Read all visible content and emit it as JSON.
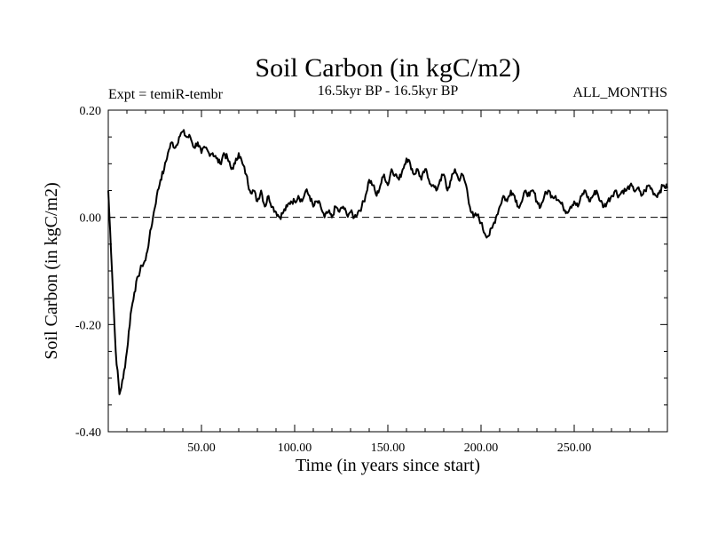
{
  "chart_data": {
    "type": "line",
    "title": "Soil Carbon (in kgC/m2)",
    "subtitle_left": "Expt = temiR-tembr",
    "subtitle_center": "16.5kyr BP - 16.5kyr BP",
    "subtitle_right": "ALL_MONTHS",
    "xlabel": "Time (in years since start)",
    "ylabel": "Soil Carbon (in kgC/m2)",
    "xlim": [
      0,
      300
    ],
    "ylim": [
      -0.4,
      0.2
    ],
    "x_ticks": [
      50,
      100,
      150,
      200,
      250
    ],
    "x_tick_labels": [
      "50.00",
      "100.00",
      "150.00",
      "200.00",
      "250.00"
    ],
    "y_ticks": [
      -0.4,
      -0.2,
      0.0,
      0.2
    ],
    "y_tick_labels": [
      "-0.40",
      "-0.20",
      "0.00",
      "0.20"
    ],
    "reference_line": 0.0,
    "series": [
      {
        "name": "Soil Carbon",
        "x": [
          0,
          2,
          4,
          6,
          8,
          10,
          12,
          14,
          16,
          18,
          20,
          22,
          24,
          26,
          28,
          30,
          32,
          34,
          36,
          38,
          40,
          42,
          44,
          46,
          48,
          50,
          52,
          54,
          56,
          58,
          60,
          62,
          64,
          66,
          68,
          70,
          72,
          74,
          76,
          78,
          80,
          82,
          84,
          86,
          88,
          90,
          92,
          94,
          96,
          98,
          100,
          102,
          104,
          106,
          108,
          110,
          112,
          114,
          116,
          118,
          120,
          122,
          124,
          126,
          128,
          130,
          132,
          134,
          136,
          138,
          140,
          142,
          144,
          146,
          148,
          150,
          152,
          154,
          156,
          158,
          160,
          162,
          164,
          166,
          168,
          170,
          172,
          174,
          176,
          178,
          180,
          182,
          184,
          186,
          188,
          190,
          192,
          194,
          196,
          198,
          200,
          202,
          204,
          206,
          208,
          210,
          212,
          214,
          216,
          218,
          220,
          222,
          224,
          226,
          228,
          230,
          232,
          234,
          236,
          238,
          240,
          242,
          244,
          246,
          248,
          250,
          252,
          254,
          256,
          258,
          260,
          262,
          264,
          266,
          268,
          270,
          272,
          274,
          276,
          278,
          280,
          282,
          284,
          286,
          288,
          290,
          292,
          294,
          296,
          298,
          300
        ],
        "y": [
          0.05,
          -0.1,
          -0.25,
          -0.33,
          -0.3,
          -0.25,
          -0.18,
          -0.14,
          -0.11,
          -0.09,
          -0.08,
          -0.04,
          0.0,
          0.04,
          0.07,
          0.09,
          0.12,
          0.14,
          0.13,
          0.15,
          0.16,
          0.15,
          0.15,
          0.13,
          0.14,
          0.12,
          0.13,
          0.12,
          0.12,
          0.11,
          0.1,
          0.12,
          0.11,
          0.09,
          0.1,
          0.12,
          0.1,
          0.08,
          0.05,
          0.05,
          0.03,
          0.05,
          0.02,
          0.04,
          0.02,
          0.01,
          0.0,
          0.01,
          0.02,
          0.03,
          0.03,
          0.04,
          0.03,
          0.05,
          0.04,
          0.02,
          0.03,
          0.02,
          0.0,
          0.01,
          0.0,
          0.02,
          0.01,
          0.02,
          0.005,
          0.01,
          0.0,
          0.01,
          0.02,
          0.04,
          0.07,
          0.06,
          0.04,
          0.06,
          0.08,
          0.06,
          0.09,
          0.08,
          0.07,
          0.09,
          0.11,
          0.1,
          0.08,
          0.09,
          0.07,
          0.09,
          0.07,
          0.06,
          0.05,
          0.07,
          0.08,
          0.05,
          0.07,
          0.09,
          0.07,
          0.08,
          0.06,
          0.02,
          0.0,
          0.005,
          -0.01,
          -0.03,
          -0.035,
          -0.02,
          0.0,
          0.02,
          0.04,
          0.03,
          0.05,
          0.04,
          0.02,
          0.03,
          0.05,
          0.04,
          0.05,
          0.03,
          0.02,
          0.04,
          0.05,
          0.04,
          0.04,
          0.03,
          0.02,
          0.01,
          0.02,
          0.03,
          0.02,
          0.04,
          0.05,
          0.03,
          0.04,
          0.05,
          0.03,
          0.02,
          0.03,
          0.04,
          0.05,
          0.04,
          0.05,
          0.05,
          0.06,
          0.05,
          0.055,
          0.04,
          0.05,
          0.06,
          0.05,
          0.04,
          0.05,
          0.06,
          0.055
        ]
      }
    ]
  }
}
